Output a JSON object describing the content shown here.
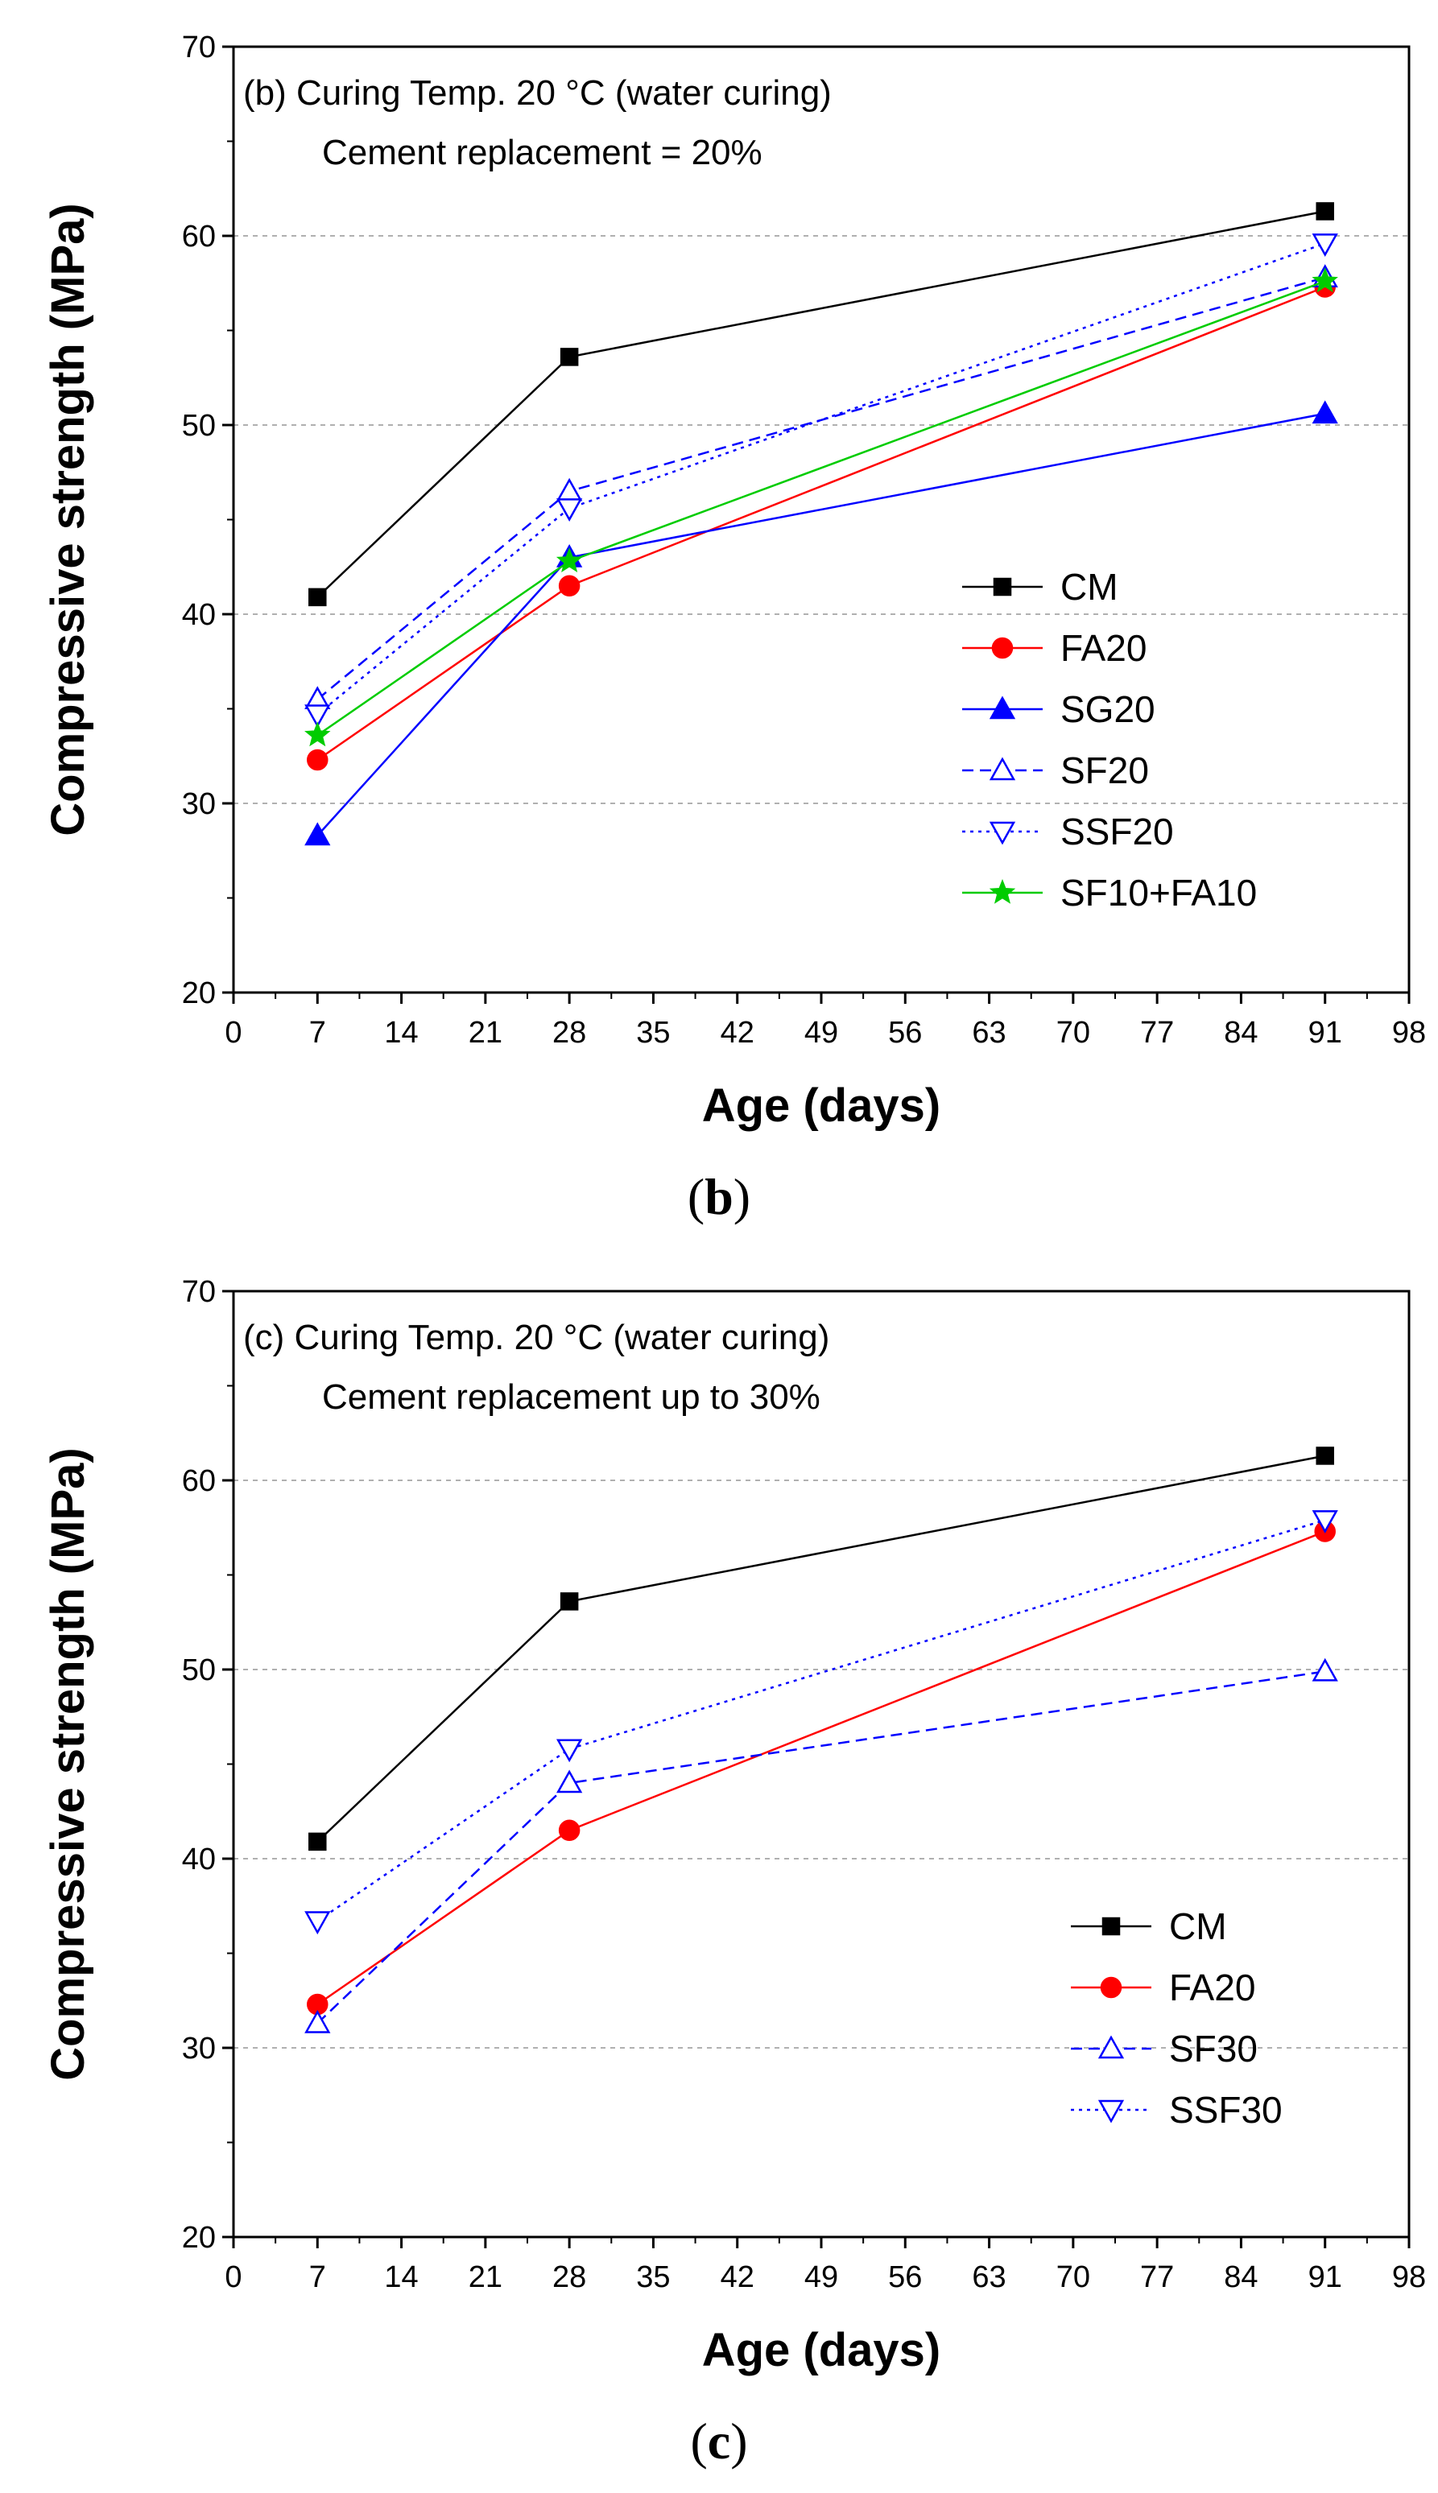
{
  "chart_data": [
    {
      "type": "line",
      "panel": "b",
      "panel_label": {
        "open": "(",
        "letter": "b",
        "close": ")"
      },
      "annotation": [
        "(b) Curing Temp. 20 °C (water curing)",
        "Cement replacement = 20%"
      ],
      "xlabel": "Age (days)",
      "ylabel": "Compressive strength (MPa)",
      "xlim": [
        0,
        98
      ],
      "ylim": [
        20,
        70
      ],
      "xticks": [
        0,
        7,
        14,
        21,
        28,
        35,
        42,
        49,
        56,
        63,
        70,
        77,
        84,
        91,
        98
      ],
      "yticks": [
        20,
        30,
        40,
        50,
        60,
        70
      ],
      "grid": "horizontal dashed at 30, 40, 50, 60",
      "legend_position": "right, lower-middle",
      "x": [
        7,
        28,
        91
      ],
      "series": [
        {
          "name": "CM",
          "values": [
            40.9,
            53.6,
            61.3
          ],
          "color": "#000000",
          "dash": "solid",
          "marker": "square",
          "filled": true
        },
        {
          "name": "FA20",
          "values": [
            32.3,
            41.5,
            57.3
          ],
          "color": "#ff0000",
          "dash": "solid",
          "marker": "circle",
          "filled": true
        },
        {
          "name": "SG20",
          "values": [
            28.3,
            43.0,
            50.6
          ],
          "color": "#0000ff",
          "dash": "solid",
          "marker": "triangle-up",
          "filled": true
        },
        {
          "name": "SF20",
          "values": [
            35.5,
            46.5,
            57.8
          ],
          "color": "#0000ff",
          "dash": "dashed",
          "marker": "triangle-up",
          "filled": false
        },
        {
          "name": "SSF20",
          "values": [
            34.7,
            45.6,
            59.6
          ],
          "color": "#0000ff",
          "dash": "dotted",
          "marker": "triangle-down",
          "filled": false
        },
        {
          "name": "SF10+FA10",
          "values": [
            33.6,
            42.8,
            57.6
          ],
          "color": "#00cc00",
          "dash": "solid",
          "marker": "star",
          "filled": true
        }
      ]
    },
    {
      "type": "line",
      "panel": "c",
      "panel_label": {
        "open": "(",
        "letter": "c",
        "close": ")"
      },
      "annotation": [
        "(c) Curing Temp. 20 °C (water curing)",
        "Cement replacement up to 30%"
      ],
      "xlabel": "Age (days)",
      "ylabel": "Compressive strength (MPa)",
      "xlim": [
        0,
        98
      ],
      "ylim": [
        20,
        70
      ],
      "xticks": [
        0,
        7,
        14,
        21,
        28,
        35,
        42,
        49,
        56,
        63,
        70,
        77,
        84,
        91,
        98
      ],
      "yticks": [
        20,
        30,
        40,
        50,
        60,
        70
      ],
      "grid": "horizontal dashed at 30, 40, 50, 60",
      "legend_position": "bottom-right",
      "x": [
        7,
        28,
        91
      ],
      "series": [
        {
          "name": "CM",
          "values": [
            40.9,
            53.6,
            61.3
          ],
          "color": "#000000",
          "dash": "solid",
          "marker": "square",
          "filled": true
        },
        {
          "name": "FA20",
          "values": [
            32.3,
            41.5,
            57.3
          ],
          "color": "#ff0000",
          "dash": "solid",
          "marker": "circle",
          "filled": true
        },
        {
          "name": "SF30",
          "values": [
            31.3,
            44.0,
            49.9
          ],
          "color": "#0000ff",
          "dash": "dashed",
          "marker": "triangle-up",
          "filled": false
        },
        {
          "name": "SSF30",
          "values": [
            36.7,
            45.8,
            57.9
          ],
          "color": "#0000ff",
          "dash": "dotted",
          "marker": "triangle-down",
          "filled": false
        }
      ]
    }
  ]
}
